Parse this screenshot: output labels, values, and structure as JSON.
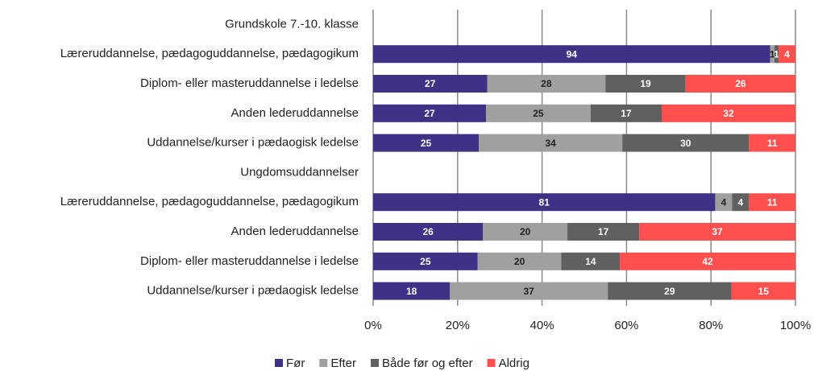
{
  "chart_data": {
    "type": "stacked-bar-100",
    "categories": [
      "Grundskole 7.-10. klasse",
      "Læreruddannelse, pædagoguddannelse, pædagogikum",
      "Diplom- eller masteruddannelse i ledelse",
      "Anden lederuddannelse",
      "Uddannelse/kurser i pædaogisk ledelse",
      "Ungdomsuddannelser",
      "Læreruddannelse, pædagoguddannelse, pædagogikum",
      "Anden lederuddannelse",
      "Diplom- eller masteruddannelse i ledelse",
      "Uddannelse/kurser i pædaogisk ledelse"
    ],
    "series": [
      {
        "name": "Før",
        "color": "#3f3185",
        "values": [
          null,
          94,
          27,
          27,
          25,
          null,
          81,
          26,
          25,
          18
        ]
      },
      {
        "name": "Efter",
        "color": "#a0a0a0",
        "values": [
          null,
          1,
          28,
          25,
          34,
          null,
          4,
          20,
          20,
          37
        ]
      },
      {
        "name": "Både før og efter",
        "color": "#606060",
        "values": [
          null,
          1,
          19,
          17,
          30,
          null,
          4,
          17,
          14,
          29
        ]
      },
      {
        "name": "Aldrig",
        "color": "#ff4f4f",
        "values": [
          null,
          4,
          26,
          32,
          11,
          null,
          11,
          37,
          42,
          15
        ]
      }
    ],
    "xlim": [
      0,
      100
    ],
    "xticks": [
      {
        "value": 0,
        "label": "0%"
      },
      {
        "value": 20,
        "label": "20%"
      },
      {
        "value": 40,
        "label": "40%"
      },
      {
        "value": 60,
        "label": "60%"
      },
      {
        "value": 80,
        "label": "80%"
      },
      {
        "value": 100,
        "label": "100%"
      }
    ],
    "grid": true,
    "legend": "bottom"
  }
}
